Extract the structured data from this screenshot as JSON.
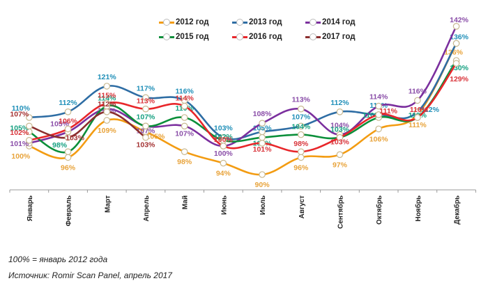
{
  "chart_data": {
    "type": "line",
    "title": "",
    "xlabel": "",
    "ylabel": "",
    "ylim": [
      85,
      145
    ],
    "grid": false,
    "legend_position": "top-center",
    "categories": [
      "Январь",
      "Февраль",
      "Март",
      "Апрель",
      "Май",
      "Июнь",
      "Июль",
      "Август",
      "Сентябрь",
      "Октябрь",
      "Ноябрь",
      "Декабрь"
    ],
    "value_suffix": "%",
    "series": [
      {
        "name": "2012 год",
        "color": "#f39c12",
        "values": [
          100,
          96,
          109,
          105,
          98,
          94,
          90,
          96,
          97,
          106,
          111,
          136
        ]
      },
      {
        "name": "2013 год",
        "color": "#2e6da4",
        "values": [
          110,
          112,
          121,
          117,
          116,
          103,
          105,
          107,
          112,
          111,
          112,
          136
        ]
      },
      {
        "name": "2014 год",
        "color": "#7b2f9e",
        "values": [
          101,
          105,
          113,
          107,
          107,
          100,
          108,
          113,
          104,
          114,
          116,
          142
        ]
      },
      {
        "name": "2015 год",
        "color": "#0b8f3a",
        "values": [
          105,
          98,
          114,
          107,
          110,
          102,
          103,
          104,
          103,
          110,
          110,
          130
        ]
      },
      {
        "name": "2016 год",
        "color": "#e8262a",
        "values": [
          102,
          106,
          115,
          113,
          114,
          100,
          101,
          98,
          103,
          111,
          110,
          129
        ]
      },
      {
        "name": "2017 год",
        "color": "#8b2e2e",
        "values": [
          107,
          103,
          112,
          103,
          null,
          null,
          null,
          null,
          null,
          null,
          null,
          null
        ]
      }
    ],
    "label_colors": {
      "2012 год": "#e8a33a",
      "2013 год": "#1f8fb8",
      "2014 год": "#8a4ea8",
      "2015 год": "#15a080",
      "2016 год": "#d9343a",
      "2017 год": "#a33232"
    }
  },
  "legend": {
    "items": [
      {
        "label": "2012 год",
        "color": "#f39c12"
      },
      {
        "label": "2013 год",
        "color": "#2e6da4"
      },
      {
        "label": "2014 год",
        "color": "#7b2f9e"
      },
      {
        "label": "2015 год",
        "color": "#0b8f3a"
      },
      {
        "label": "2016 год",
        "color": "#e8262a"
      },
      {
        "label": "2017 год",
        "color": "#8b2e2e"
      }
    ]
  },
  "notes": {
    "base": "100% = январь 2012 года",
    "source": "Источник: Romir Scan Panel, апрель 2017"
  }
}
